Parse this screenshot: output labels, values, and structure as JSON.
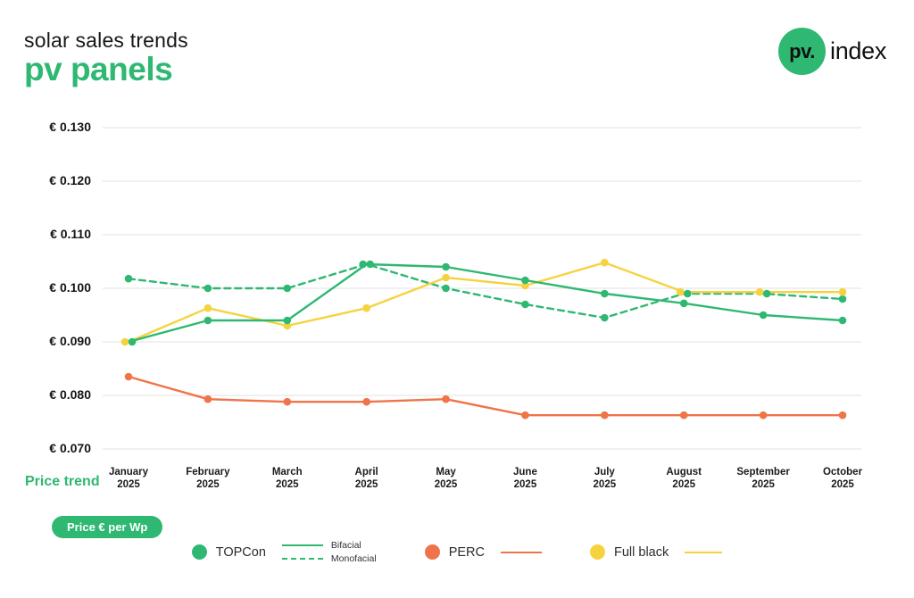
{
  "header": {
    "subtitle": "solar sales trends",
    "title": "pv panels",
    "logo": {
      "circle_text": "pv.",
      "wordmark": "index"
    }
  },
  "side": {
    "price_trend_label": "Price trend",
    "unit_badge": "Price € per Wp"
  },
  "legend": {
    "topcon": "TOPCon",
    "bifacial": "Bifacial",
    "monofacial": "Monofacial",
    "perc": "PERC",
    "full_black": "Full black"
  },
  "colors": {
    "green": "#2eb872",
    "orange": "#ef7449",
    "yellow": "#f5d33f",
    "grid": "#e6e6e6",
    "text_dark": "#141414"
  },
  "chart_data": {
    "type": "line",
    "title": "solar sales trends — pv panels",
    "ylabel": "Price € per Wp",
    "xlabel": "",
    "year": "2025",
    "categories": [
      "January",
      "February",
      "March",
      "April",
      "May",
      "June",
      "July",
      "August",
      "September",
      "October"
    ],
    "ylim": [
      0.07,
      0.13
    ],
    "grid": "horizontal",
    "legend_position": "bottom",
    "y_ticks": [
      {
        "value": 0.13,
        "label": "€ 0.130"
      },
      {
        "value": 0.12,
        "label": "€ 0.120"
      },
      {
        "value": 0.11,
        "label": "€ 0.110"
      },
      {
        "value": 0.1,
        "label": "€ 0.100"
      },
      {
        "value": 0.09,
        "label": "€ 0.090"
      },
      {
        "value": 0.08,
        "label": "€ 0.080"
      },
      {
        "value": 0.07,
        "label": "€ 0.070"
      }
    ],
    "series": [
      {
        "name": "TOPCon Bifacial",
        "color": "#2eb872",
        "dash": "solid",
        "values": [
          0.09,
          0.094,
          0.094,
          0.1045,
          0.104,
          0.1015,
          0.099,
          0.0972,
          0.095,
          0.094
        ]
      },
      {
        "name": "TOPCon Monofacial",
        "color": "#2eb872",
        "dash": "dashed",
        "values": [
          0.1018,
          0.1,
          0.1,
          0.1045,
          0.1,
          0.097,
          0.0945,
          0.099,
          0.099,
          0.098
        ]
      },
      {
        "name": "PERC",
        "color": "#ef7449",
        "dash": "solid",
        "values": [
          0.0835,
          0.0793,
          0.0788,
          0.0788,
          0.0793,
          0.0763,
          0.0763,
          0.0763,
          0.0763,
          0.0763
        ]
      },
      {
        "name": "Full black",
        "color": "#f5d33f",
        "dash": "solid",
        "values": [
          0.09,
          0.0963,
          0.093,
          0.0963,
          0.102,
          0.1005,
          0.1048,
          0.0993,
          0.0993,
          0.0993
        ]
      }
    ]
  }
}
